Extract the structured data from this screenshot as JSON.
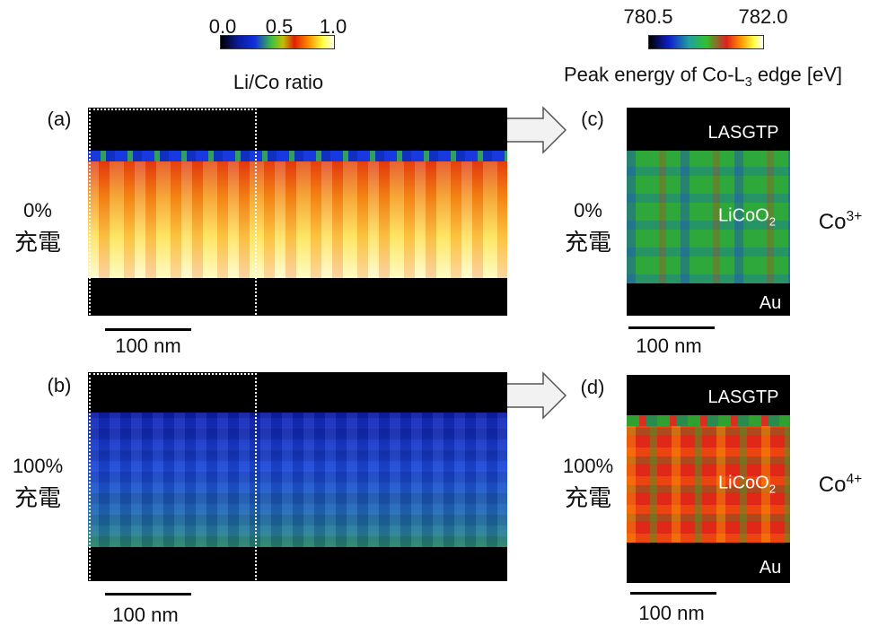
{
  "colorbars": [
    {
      "ticks": [
        "0.0",
        "0.5",
        "1.0"
      ],
      "label": "Li/Co ratio"
    },
    {
      "ticks": [
        "780.5",
        "782.0"
      ],
      "label": {
        "main": "Peak energy of Co-L",
        "sub": "3",
        "rest": " edge [eV]"
      }
    }
  ],
  "panels": [
    {
      "tag": "(a)",
      "charge": "0%",
      "charge_label": "充電",
      "scale_bar": "100 nm"
    },
    {
      "tag": "(b)",
      "charge": "100%",
      "charge_label": "充電",
      "scale_bar": "100 nm"
    },
    {
      "tag": "(c)",
      "charge": "0%",
      "charge_label": "充電",
      "scale_bar": "100 nm",
      "layers": {
        "top": "LASGTP",
        "middle": {
          "main": "LiCoO",
          "sub": "2"
        },
        "bottom": "Au"
      },
      "state": {
        "main": "Co",
        "sup": "3+"
      }
    },
    {
      "tag": "(d)",
      "charge": "100%",
      "charge_label": "充電",
      "scale_bar": "100 nm",
      "layers": {
        "top": "LASGTP",
        "middle": {
          "main": "LiCoO",
          "sub": "2"
        },
        "bottom": "Au"
      },
      "state": {
        "main": "Co",
        "sup": "4+"
      }
    }
  ]
}
